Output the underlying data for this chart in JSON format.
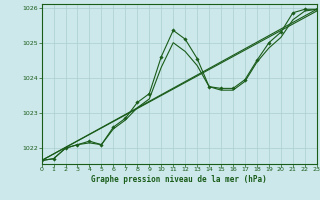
{
  "title": "Graphe pression niveau de la mer (hPa)",
  "background_color": "#cce8ea",
  "grid_color": "#aacfcf",
  "line_color": "#1a5c1a",
  "marker_color": "#1a5c1a",
  "xlim": [
    0,
    23
  ],
  "ylim": [
    1021.55,
    1026.1
  ],
  "xticks": [
    0,
    1,
    2,
    3,
    4,
    5,
    6,
    7,
    8,
    9,
    10,
    11,
    12,
    13,
    14,
    15,
    16,
    17,
    18,
    19,
    20,
    21,
    22,
    23
  ],
  "yticks": [
    1022,
    1023,
    1024,
    1025,
    1026
  ],
  "series": [
    {
      "x": [
        0,
        1,
        2,
        3,
        4,
        5,
        6,
        7,
        8,
        9,
        10,
        11,
        12,
        13,
        14,
        15,
        16,
        17,
        18,
        19,
        20,
        21,
        22,
        23
      ],
      "y": [
        1021.65,
        1021.7,
        1022.0,
        1022.1,
        1022.2,
        1022.1,
        1022.6,
        1022.85,
        1023.3,
        1023.55,
        1024.6,
        1025.35,
        1025.1,
        1024.55,
        1023.75,
        1023.7,
        1023.7,
        1023.95,
        1024.5,
        1025.0,
        1025.3,
        1025.85,
        1025.95,
        1025.95
      ],
      "marker": true
    },
    {
      "x": [
        0,
        1,
        2,
        3,
        4,
        5,
        6,
        7,
        8,
        9,
        10,
        11,
        12,
        13,
        14,
        15,
        16,
        17,
        18,
        19,
        20,
        21,
        22,
        23
      ],
      "y": [
        1021.65,
        1021.7,
        1022.0,
        1022.1,
        1022.15,
        1022.1,
        1022.55,
        1022.8,
        1023.15,
        1023.4,
        1024.3,
        1025.0,
        1024.75,
        1024.35,
        1023.75,
        1023.65,
        1023.65,
        1023.9,
        1024.45,
        1024.85,
        1025.15,
        1025.65,
        1025.9,
        1025.95
      ],
      "marker": false
    },
    {
      "x": [
        0,
        23
      ],
      "y": [
        1021.65,
        1025.95
      ],
      "marker": false
    },
    {
      "x": [
        0,
        23
      ],
      "y": [
        1021.65,
        1025.9
      ],
      "marker": false
    }
  ]
}
